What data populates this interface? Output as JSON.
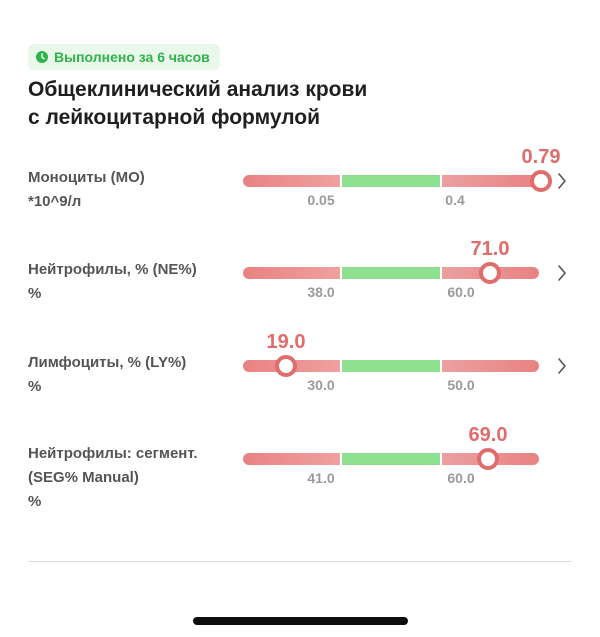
{
  "status_badge": {
    "text": "Выполнено за 6 часов",
    "color": "#2fb34a",
    "icon": "clock-icon"
  },
  "title": {
    "line1": "Общеклинический анализ крови",
    "line2": "с лейкоцитарной формулой"
  },
  "colors": {
    "out_of_range": "#e06c6c",
    "normal_range": "#8fe08f",
    "tick_text": "#9a9a9a"
  },
  "indicators": [
    {
      "name_lines": [
        "Моноциты (MO)",
        "*10^9/л"
      ],
      "value": "0.79",
      "low": "0.05",
      "high": "0.4",
      "value_fraction": 1.0,
      "has_details": true
    },
    {
      "name_lines": [
        "Нейтрофилы, % (NE%)",
        "%"
      ],
      "value": "71.0",
      "low": "38.0",
      "high": "60.0",
      "value_fraction": 0.83,
      "has_details": true
    },
    {
      "name_lines": [
        "Лимфоциты, % (LY%)",
        "%"
      ],
      "value": "19.0",
      "low": "30.0",
      "high": "50.0",
      "value_fraction": 0.14,
      "has_details": true
    },
    {
      "name_lines": [
        "Нейтрофилы: сегмент.",
        "(SEG% Manual)",
        "%"
      ],
      "value": "69.0",
      "low": "41.0",
      "high": "60.0",
      "value_fraction": 0.83,
      "has_details": false
    }
  ]
}
